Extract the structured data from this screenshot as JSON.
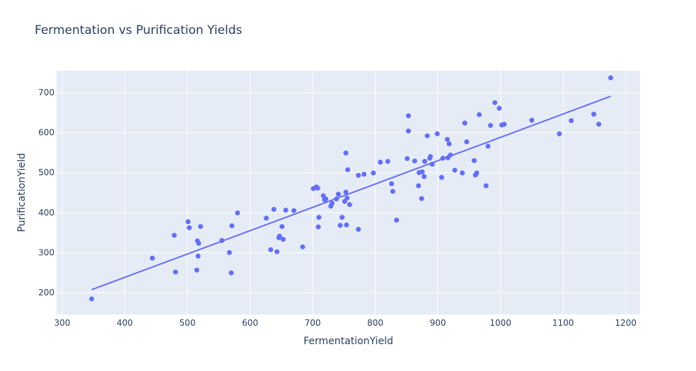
{
  "chart_data": {
    "type": "scatter",
    "title": "Fermentation vs Purification Yields",
    "xlabel": "FermentationYield",
    "ylabel": "PurificationYield",
    "xlim": [
      291,
      1223
    ],
    "ylim": [
      145,
      755
    ],
    "xticks": [
      300,
      400,
      500,
      600,
      700,
      800,
      900,
      1000,
      1100,
      1200
    ],
    "yticks": [
      200,
      300,
      400,
      500,
      600,
      700
    ],
    "grid": true,
    "legend": "none",
    "colors": {
      "marker": "#636efa",
      "trendline": "#636efa",
      "plot_bg": "#e5ecf6",
      "grid": "#ffffff",
      "text": "#2a3f5f"
    },
    "series": [
      {
        "mode": "markers",
        "points": [
          [
            347,
            184
          ],
          [
            444,
            286
          ],
          [
            479,
            343
          ],
          [
            481,
            251
          ],
          [
            501,
            377
          ],
          [
            503,
            362
          ],
          [
            515,
            256
          ],
          [
            516,
            329
          ],
          [
            517,
            291
          ],
          [
            518,
            323
          ],
          [
            521,
            365
          ],
          [
            555,
            330
          ],
          [
            567,
            300
          ],
          [
            570,
            249
          ],
          [
            571,
            367
          ],
          [
            580,
            399
          ],
          [
            626,
            386
          ],
          [
            633,
            307
          ],
          [
            638,
            408
          ],
          [
            643,
            302
          ],
          [
            646,
            337
          ],
          [
            647,
            341
          ],
          [
            651,
            365
          ],
          [
            653,
            333
          ],
          [
            657,
            406
          ],
          [
            670,
            405
          ],
          [
            684,
            314
          ],
          [
            701,
            460
          ],
          [
            706,
            464
          ],
          [
            708,
            461
          ],
          [
            709,
            364
          ],
          [
            710,
            388
          ],
          [
            717,
            442
          ],
          [
            719,
            432
          ],
          [
            721,
            434
          ],
          [
            729,
            416
          ],
          [
            731,
            423
          ],
          [
            738,
            434
          ],
          [
            741,
            446
          ],
          [
            744,
            368
          ],
          [
            747,
            388
          ],
          [
            751,
            428
          ],
          [
            753,
            451
          ],
          [
            753,
            549
          ],
          [
            754,
            369
          ],
          [
            755,
            436
          ],
          [
            756,
            507
          ],
          [
            759,
            420
          ],
          [
            773,
            358
          ],
          [
            773,
            493
          ],
          [
            782,
            496
          ],
          [
            797,
            499
          ],
          [
            808,
            526
          ],
          [
            820,
            528
          ],
          [
            826,
            472
          ],
          [
            828,
            453
          ],
          [
            834,
            381
          ],
          [
            851,
            535
          ],
          [
            853,
            642
          ],
          [
            853,
            604
          ],
          [
            863,
            529
          ],
          [
            869,
            467
          ],
          [
            870,
            500
          ],
          [
            874,
            435
          ],
          [
            875,
            502
          ],
          [
            878,
            490
          ],
          [
            879,
            528
          ],
          [
            883,
            592
          ],
          [
            887,
            536
          ],
          [
            888,
            540
          ],
          [
            891,
            521
          ],
          [
            899,
            597
          ],
          [
            906,
            488
          ],
          [
            908,
            536
          ],
          [
            915,
            583
          ],
          [
            916,
            537
          ],
          [
            918,
            572
          ],
          [
            920,
            544
          ],
          [
            927,
            506
          ],
          [
            939,
            499
          ],
          [
            943,
            624
          ],
          [
            946,
            577
          ],
          [
            958,
            530
          ],
          [
            960,
            494
          ],
          [
            962,
            499
          ],
          [
            966,
            645
          ],
          [
            977,
            467
          ],
          [
            980,
            566
          ],
          [
            984,
            618
          ],
          [
            991,
            675
          ],
          [
            998,
            661
          ],
          [
            1002,
            619
          ],
          [
            1006,
            621
          ],
          [
            1050,
            631
          ],
          [
            1094,
            597
          ],
          [
            1113,
            630
          ],
          [
            1149,
            646
          ],
          [
            1157,
            621
          ],
          [
            1176,
            737
          ]
        ]
      },
      {
        "mode": "lines",
        "points": [
          [
            347,
            207
          ],
          [
            1176,
            691
          ]
        ]
      }
    ]
  }
}
